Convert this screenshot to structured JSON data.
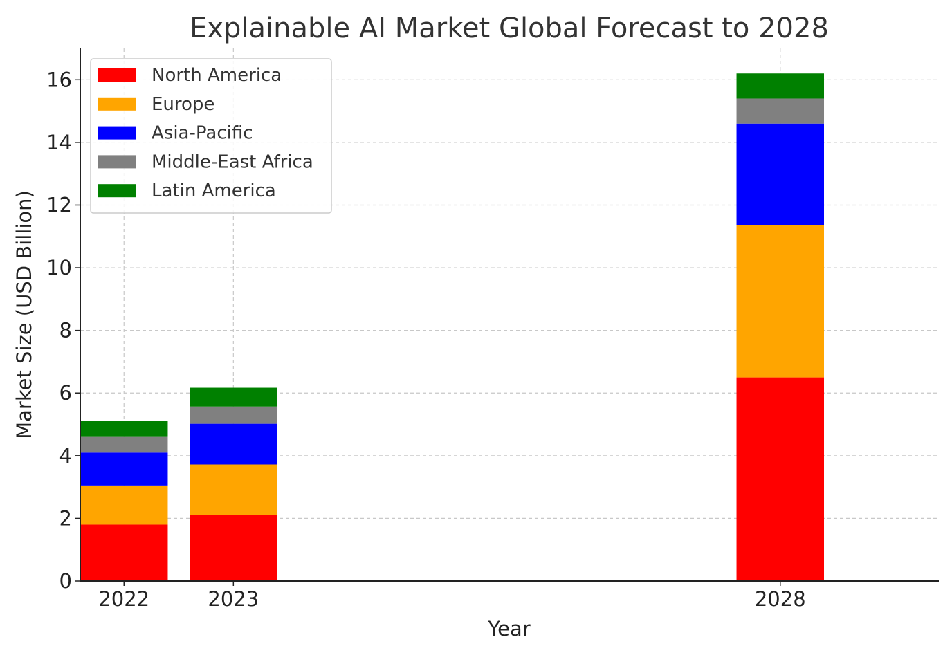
{
  "chart_data": {
    "type": "bar",
    "stacked": true,
    "title": "Explainable AI Market Global Forecast to 2028",
    "xlabel": "Year",
    "ylabel": "Market Size (USD Billion)",
    "x": [
      2022,
      2023,
      2028
    ],
    "x_tick_labels": [
      "2022",
      "2023",
      "2028"
    ],
    "xlim": [
      2021.6,
      2029.45
    ],
    "ylim": [
      0,
      17
    ],
    "y_ticks": [
      0,
      2,
      4,
      6,
      8,
      10,
      12,
      14,
      16
    ],
    "y_tick_labels": [
      "0",
      "2",
      "4",
      "6",
      "8",
      "10",
      "12",
      "14",
      "16"
    ],
    "grid": true,
    "legend_position": "top-left",
    "series": [
      {
        "name": "North America",
        "color": "#ff0000",
        "values": [
          1.8,
          2.1,
          6.5
        ]
      },
      {
        "name": "Europe",
        "color": "#ffa500",
        "values": [
          1.25,
          1.62,
          4.85
        ]
      },
      {
        "name": "Asia-Pacific",
        "color": "#0000ff",
        "values": [
          1.05,
          1.3,
          3.25
        ]
      },
      {
        "name": "Middle-East Africa",
        "color": "#808080",
        "values": [
          0.5,
          0.55,
          0.8
        ]
      },
      {
        "name": "Latin America",
        "color": "#008000",
        "values": [
          0.5,
          0.6,
          0.8
        ]
      }
    ]
  }
}
